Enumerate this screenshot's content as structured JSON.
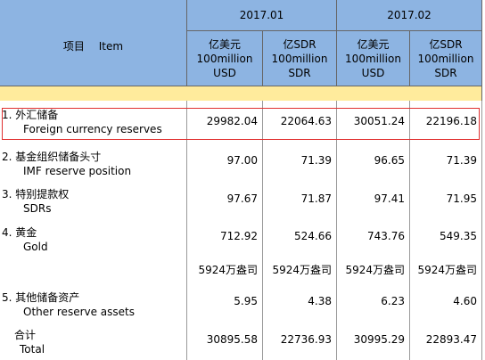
{
  "header": {
    "item": "项目　 Item",
    "periods": [
      "2017.01",
      "2017.02"
    ],
    "units": [
      [
        "亿美元",
        "100million",
        "USD"
      ],
      [
        "亿SDR",
        "100million",
        "SDR"
      ],
      [
        "亿美元",
        "100million",
        "USD"
      ],
      [
        "亿SDR",
        "100million",
        "SDR"
      ]
    ]
  },
  "rows": [
    {
      "cn": "1. 外汇储备",
      "en": "Foreign currency reserves",
      "values": [
        "29982.04",
        "22064.63",
        "30051.24",
        "22196.18"
      ]
    },
    {
      "cn": "2. 基金组织储备头寸",
      "en": "IMF reserve position",
      "values": [
        "97.00",
        "71.39",
        "96.65",
        "71.39"
      ]
    },
    {
      "cn": "3. 特别提款权",
      "en": "SDRs",
      "values": [
        "97.67",
        "71.87",
        "97.41",
        "71.95"
      ]
    },
    {
      "cn": "4. 黄金",
      "en": "Gold",
      "values": [
        "712.92",
        "524.66",
        "743.76",
        "549.35"
      ]
    },
    {
      "values": [
        "5924万盎司",
        "5924万盎司",
        "5924万盎司",
        "5924万盎司"
      ]
    },
    {
      "cn": "5. 其他储备资产",
      "en": "Other reserve assets",
      "values": [
        "5.95",
        "4.38",
        "6.23",
        "4.60"
      ]
    },
    {
      "cn": "合计",
      "en": "Total",
      "values": [
        "30895.58",
        "22736.93",
        "30995.29",
        "22893.47"
      ]
    }
  ]
}
